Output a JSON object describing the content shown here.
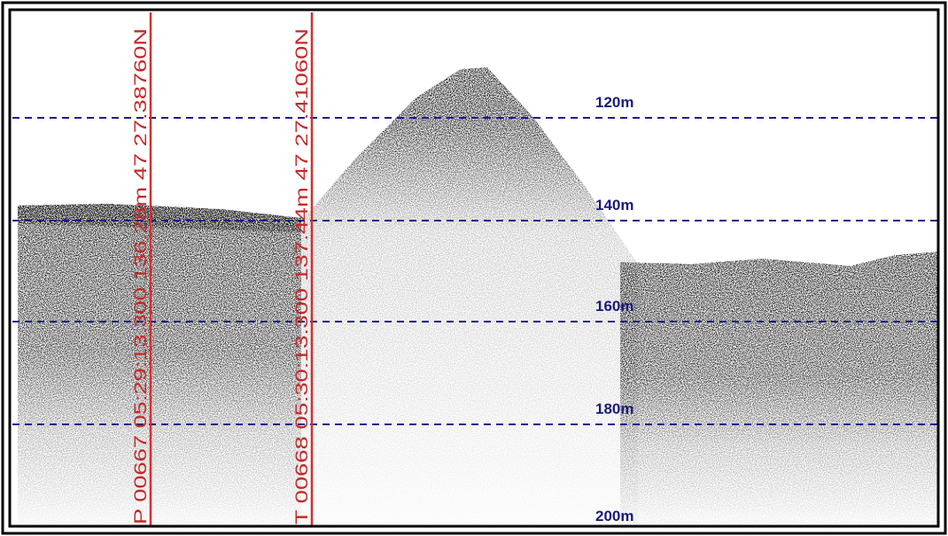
{
  "markers": [
    {
      "label": "P 00667 05:29:13.300 136.28m 47 27.38760N"
    },
    {
      "label": "T 00668 05:30:13.300 137.44m 47 27.41060N"
    }
  ],
  "depth_labels": [
    "120m",
    "140m",
    "160m",
    "180m",
    "200m"
  ]
}
